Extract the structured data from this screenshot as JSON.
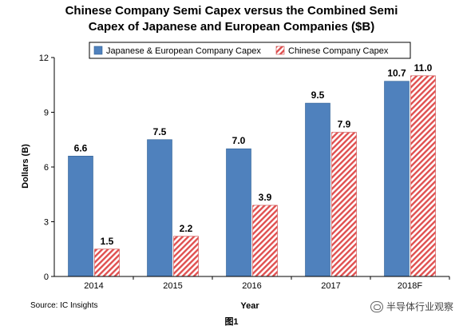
{
  "chart_data": {
    "type": "bar",
    "title_line1": "Chinese Company Semi Capex versus the Combined Semi",
    "title_line2": "Capex of Japanese and European Companies ($B)",
    "xlabel": "Year",
    "ylabel": "Dollars (B)",
    "ylim": [
      0,
      12
    ],
    "yticks": [
      "0",
      "3",
      "6",
      "9",
      "12"
    ],
    "categories": [
      "2014",
      "2015",
      "2016",
      "2017",
      "2018F"
    ],
    "legend_position": "top-right",
    "series": [
      {
        "name": "Japanese & European Company Capex",
        "values": [
          6.6,
          7.5,
          7.0,
          9.5,
          10.7
        ],
        "labels": [
          "6.6",
          "7.5",
          "7.0",
          "9.5",
          "10.7"
        ],
        "color": "#4f81bd",
        "pattern": "solid"
      },
      {
        "name": "Chinese Company Capex",
        "values": [
          1.5,
          2.2,
          3.9,
          7.9,
          11.0
        ],
        "labels": [
          "1.5",
          "2.2",
          "3.9",
          "7.9",
          "11.0"
        ],
        "color": "#e05050",
        "pattern": "diagonal-hatch"
      }
    ]
  },
  "source": "Source: IC Insights",
  "figure_caption": "图1",
  "watermark": "半导体行业观察"
}
